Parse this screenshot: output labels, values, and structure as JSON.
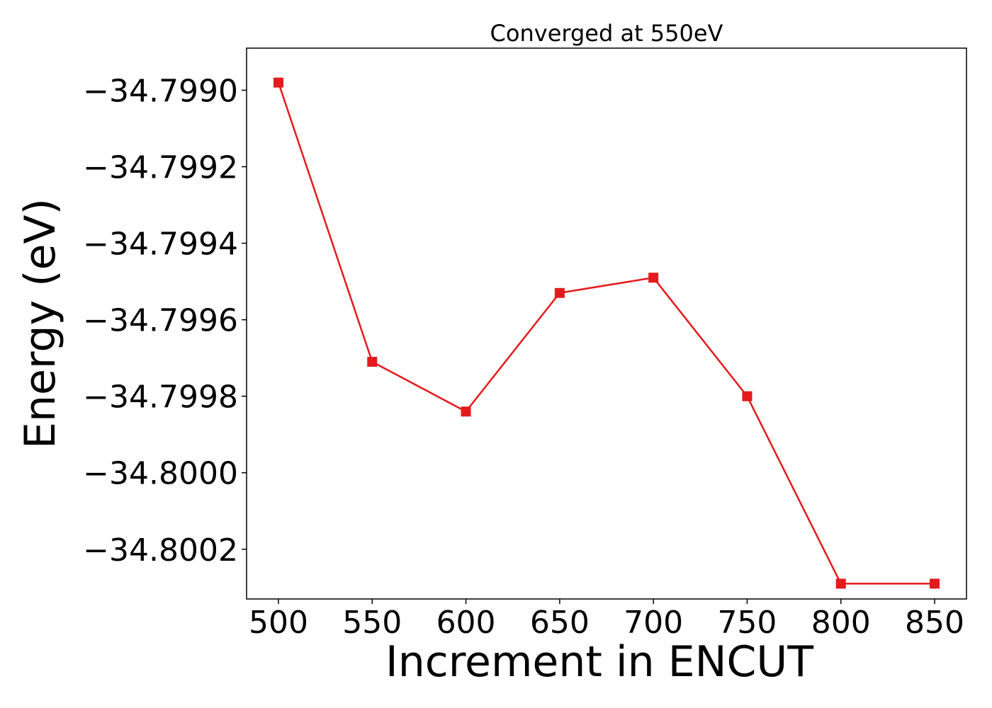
{
  "chart_data": {
    "type": "line",
    "title": "Converged at 550eV",
    "xlabel": "Increment in ENCUT",
    "ylabel": "Energy (eV)",
    "x": [
      500,
      550,
      600,
      650,
      700,
      750,
      800,
      850
    ],
    "series": [
      {
        "values": [
          -34.79898,
          -34.79971,
          -34.79984,
          -34.79953,
          -34.79949,
          -34.7998,
          -34.80029,
          -34.80029
        ],
        "color": "#e41a1c",
        "marker": "square"
      }
    ],
    "xticks": [
      500,
      550,
      600,
      650,
      700,
      750,
      800,
      850
    ],
    "xtick_labels": [
      "500",
      "550",
      "600",
      "650",
      "700",
      "750",
      "800",
      "850"
    ],
    "yticks": [
      -34.799,
      -34.7992,
      -34.7994,
      -34.7996,
      -34.7998,
      -34.8,
      -34.8002
    ],
    "ytick_labels": [
      "−34.7990",
      "−34.7992",
      "−34.7994",
      "−34.7996",
      "−34.7998",
      "−34.8000",
      "−34.8002"
    ],
    "xlim": [
      483,
      867
    ],
    "ylim": [
      -34.80033,
      -34.79889
    ],
    "grid": false,
    "legend": "none"
  }
}
